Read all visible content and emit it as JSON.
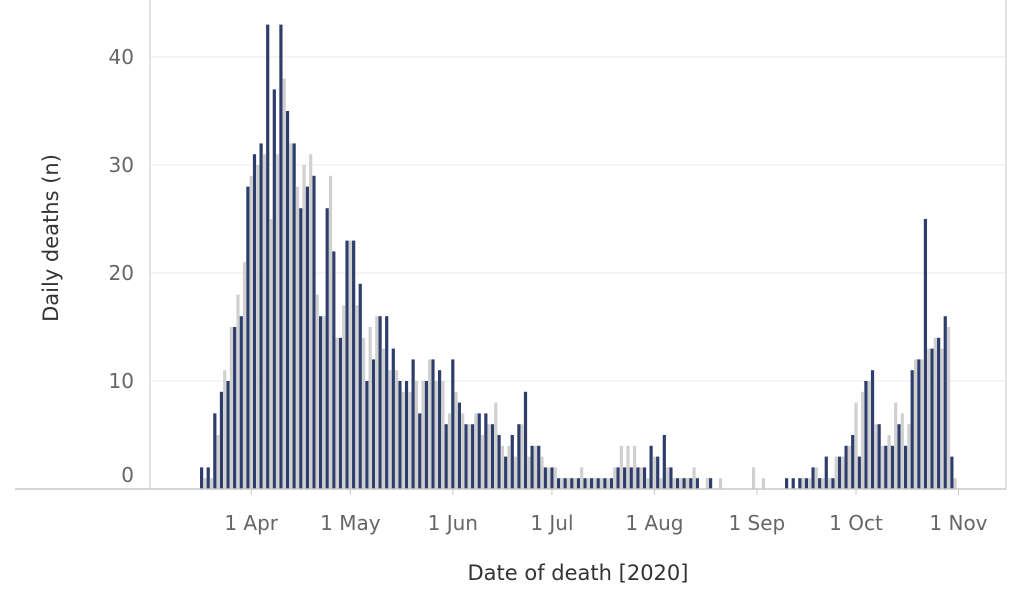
{
  "chart_data": {
    "type": "bar",
    "xlabel": "Date of death [2020]",
    "ylabel": "Daily deaths (n)",
    "ylim": [
      0,
      45
    ],
    "yticks": [
      0,
      10,
      20,
      30,
      40
    ],
    "x_tick_labels": [
      "1 Apr",
      "1 May",
      "1 Jun",
      "1 Jul",
      "1 Aug",
      "1 Sep",
      "1 Oct",
      "1 Nov"
    ],
    "x_tick_dates": [
      "2020-04-01",
      "2020-05-01",
      "2020-06-01",
      "2020-07-01",
      "2020-08-01",
      "2020-09-01",
      "2020-10-01",
      "2020-11-01"
    ],
    "grid": true,
    "legend": "none",
    "x_range": [
      "2020-03-15",
      "2020-11-06"
    ],
    "colors": {
      "series_a": "#2e3d6b",
      "series_b": "#d0d0d0"
    },
    "series": [
      {
        "points": [
          [
            "2020-03-17",
            2
          ],
          [
            "2020-03-19",
            2
          ],
          [
            "2020-03-21",
            7
          ],
          [
            "2020-03-23",
            9
          ],
          [
            "2020-03-25",
            10
          ],
          [
            "2020-03-27",
            15
          ],
          [
            "2020-03-29",
            16
          ],
          [
            "2020-03-31",
            28
          ],
          [
            "2020-04-02",
            31
          ],
          [
            "2020-04-04",
            32
          ],
          [
            "2020-04-06",
            43
          ],
          [
            "2020-04-08",
            37
          ],
          [
            "2020-04-10",
            43
          ],
          [
            "2020-04-12",
            35
          ],
          [
            "2020-04-14",
            32
          ],
          [
            "2020-04-16",
            26
          ],
          [
            "2020-04-18",
            28
          ],
          [
            "2020-04-20",
            29
          ],
          [
            "2020-04-22",
            16
          ],
          [
            "2020-04-24",
            26
          ],
          [
            "2020-04-26",
            22
          ],
          [
            "2020-04-28",
            14
          ],
          [
            "2020-04-30",
            23
          ],
          [
            "2020-05-02",
            23
          ],
          [
            "2020-05-04",
            19
          ],
          [
            "2020-05-06",
            10
          ],
          [
            "2020-05-08",
            12
          ],
          [
            "2020-05-10",
            16
          ],
          [
            "2020-05-12",
            16
          ],
          [
            "2020-05-14",
            13
          ],
          [
            "2020-05-16",
            10
          ],
          [
            "2020-05-18",
            10
          ],
          [
            "2020-05-20",
            12
          ],
          [
            "2020-05-22",
            7
          ],
          [
            "2020-05-24",
            10
          ],
          [
            "2020-05-26",
            12
          ],
          [
            "2020-05-28",
            11
          ],
          [
            "2020-05-30",
            6
          ],
          [
            "2020-06-01",
            12
          ],
          [
            "2020-06-03",
            8
          ],
          [
            "2020-06-05",
            6
          ],
          [
            "2020-06-07",
            6
          ],
          [
            "2020-06-09",
            7
          ],
          [
            "2020-06-11",
            7
          ],
          [
            "2020-06-13",
            6
          ],
          [
            "2020-06-15",
            5
          ],
          [
            "2020-06-17",
            3
          ],
          [
            "2020-06-19",
            5
          ],
          [
            "2020-06-21",
            6
          ],
          [
            "2020-06-23",
            9
          ],
          [
            "2020-06-25",
            4
          ],
          [
            "2020-06-27",
            4
          ],
          [
            "2020-06-29",
            2
          ],
          [
            "2020-07-01",
            2
          ],
          [
            "2020-07-03",
            1
          ],
          [
            "2020-07-05",
            1
          ],
          [
            "2020-07-07",
            1
          ],
          [
            "2020-07-09",
            1
          ],
          [
            "2020-07-11",
            1
          ],
          [
            "2020-07-13",
            1
          ],
          [
            "2020-07-15",
            1
          ],
          [
            "2020-07-17",
            1
          ],
          [
            "2020-07-19",
            1
          ],
          [
            "2020-07-21",
            2
          ],
          [
            "2020-07-23",
            2
          ],
          [
            "2020-07-25",
            2
          ],
          [
            "2020-07-27",
            2
          ],
          [
            "2020-07-29",
            2
          ],
          [
            "2020-07-31",
            4
          ],
          [
            "2020-08-02",
            3
          ],
          [
            "2020-08-04",
            5
          ],
          [
            "2020-08-06",
            2
          ],
          [
            "2020-08-08",
            1
          ],
          [
            "2020-08-10",
            1
          ],
          [
            "2020-08-12",
            1
          ],
          [
            "2020-08-14",
            1
          ],
          [
            "2020-08-18",
            1
          ],
          [
            "2020-09-10",
            1
          ],
          [
            "2020-09-12",
            1
          ],
          [
            "2020-09-14",
            1
          ],
          [
            "2020-09-16",
            1
          ],
          [
            "2020-09-18",
            2
          ],
          [
            "2020-09-20",
            1
          ],
          [
            "2020-09-22",
            3
          ],
          [
            "2020-09-24",
            1
          ],
          [
            "2020-09-26",
            3
          ],
          [
            "2020-09-28",
            4
          ],
          [
            "2020-09-30",
            5
          ],
          [
            "2020-10-02",
            3
          ],
          [
            "2020-10-04",
            10
          ],
          [
            "2020-10-06",
            11
          ],
          [
            "2020-10-08",
            6
          ],
          [
            "2020-10-10",
            4
          ],
          [
            "2020-10-12",
            4
          ],
          [
            "2020-10-14",
            6
          ],
          [
            "2020-10-16",
            4
          ],
          [
            "2020-10-18",
            11
          ],
          [
            "2020-10-20",
            12
          ],
          [
            "2020-10-22",
            25
          ],
          [
            "2020-10-24",
            13
          ],
          [
            "2020-10-26",
            14
          ],
          [
            "2020-10-28",
            16
          ],
          [
            "2020-10-30",
            3
          ]
        ]
      },
      {
        "points": [
          [
            "2020-03-18",
            1
          ],
          [
            "2020-03-20",
            1
          ],
          [
            "2020-03-22",
            5
          ],
          [
            "2020-03-24",
            11
          ],
          [
            "2020-03-26",
            15
          ],
          [
            "2020-03-28",
            18
          ],
          [
            "2020-03-30",
            21
          ],
          [
            "2020-04-01",
            29
          ],
          [
            "2020-04-03",
            30
          ],
          [
            "2020-04-05",
            31
          ],
          [
            "2020-04-07",
            25
          ],
          [
            "2020-04-09",
            31
          ],
          [
            "2020-04-11",
            38
          ],
          [
            "2020-04-13",
            32
          ],
          [
            "2020-04-15",
            28
          ],
          [
            "2020-04-17",
            30
          ],
          [
            "2020-04-19",
            31
          ],
          [
            "2020-04-21",
            18
          ],
          [
            "2020-04-23",
            16
          ],
          [
            "2020-04-25",
            29
          ],
          [
            "2020-04-27",
            14
          ],
          [
            "2020-04-29",
            17
          ],
          [
            "2020-05-01",
            23
          ],
          [
            "2020-05-03",
            17
          ],
          [
            "2020-05-05",
            14
          ],
          [
            "2020-05-07",
            15
          ],
          [
            "2020-05-09",
            16
          ],
          [
            "2020-05-11",
            13
          ],
          [
            "2020-05-13",
            11
          ],
          [
            "2020-05-15",
            11
          ],
          [
            "2020-05-17",
            9
          ],
          [
            "2020-05-19",
            9
          ],
          [
            "2020-05-21",
            10
          ],
          [
            "2020-05-23",
            10
          ],
          [
            "2020-05-25",
            12
          ],
          [
            "2020-05-27",
            10
          ],
          [
            "2020-05-29",
            10
          ],
          [
            "2020-05-31",
            7
          ],
          [
            "2020-06-02",
            9
          ],
          [
            "2020-06-04",
            7
          ],
          [
            "2020-06-06",
            6
          ],
          [
            "2020-06-08",
            7
          ],
          [
            "2020-06-10",
            5
          ],
          [
            "2020-06-12",
            6
          ],
          [
            "2020-06-14",
            8
          ],
          [
            "2020-06-16",
            4
          ],
          [
            "2020-06-18",
            4
          ],
          [
            "2020-06-20",
            3
          ],
          [
            "2020-06-22",
            6
          ],
          [
            "2020-06-24",
            3
          ],
          [
            "2020-06-26",
            4
          ],
          [
            "2020-06-28",
            3
          ],
          [
            "2020-06-30",
            2
          ],
          [
            "2020-07-02",
            2
          ],
          [
            "2020-07-04",
            1
          ],
          [
            "2020-07-06",
            1
          ],
          [
            "2020-07-08",
            1
          ],
          [
            "2020-07-10",
            2
          ],
          [
            "2020-07-12",
            1
          ],
          [
            "2020-07-14",
            1
          ],
          [
            "2020-07-16",
            1
          ],
          [
            "2020-07-18",
            1
          ],
          [
            "2020-07-20",
            2
          ],
          [
            "2020-07-22",
            4
          ],
          [
            "2020-07-24",
            4
          ],
          [
            "2020-07-26",
            4
          ],
          [
            "2020-07-28",
            2
          ],
          [
            "2020-07-30",
            1
          ],
          [
            "2020-08-01",
            3
          ],
          [
            "2020-08-03",
            1
          ],
          [
            "2020-08-05",
            2
          ],
          [
            "2020-08-07",
            1
          ],
          [
            "2020-08-09",
            1
          ],
          [
            "2020-08-11",
            1
          ],
          [
            "2020-08-13",
            2
          ],
          [
            "2020-08-17",
            1
          ],
          [
            "2020-08-21",
            1
          ],
          [
            "2020-08-31",
            2
          ],
          [
            "2020-09-03",
            1
          ],
          [
            "2020-09-15",
            1
          ],
          [
            "2020-09-17",
            1
          ],
          [
            "2020-09-19",
            2
          ],
          [
            "2020-09-21",
            1
          ],
          [
            "2020-09-23",
            1
          ],
          [
            "2020-09-25",
            3
          ],
          [
            "2020-09-27",
            3
          ],
          [
            "2020-09-29",
            4
          ],
          [
            "2020-10-01",
            8
          ],
          [
            "2020-10-03",
            9
          ],
          [
            "2020-10-05",
            10
          ],
          [
            "2020-10-07",
            6
          ],
          [
            "2020-10-09",
            4
          ],
          [
            "2020-10-11",
            5
          ],
          [
            "2020-10-13",
            8
          ],
          [
            "2020-10-15",
            7
          ],
          [
            "2020-10-17",
            6
          ],
          [
            "2020-10-19",
            12
          ],
          [
            "2020-10-21",
            12
          ],
          [
            "2020-10-23",
            13
          ],
          [
            "2020-10-25",
            14
          ],
          [
            "2020-10-27",
            13
          ],
          [
            "2020-10-29",
            15
          ],
          [
            "2020-10-31",
            1
          ]
        ]
      }
    ]
  }
}
